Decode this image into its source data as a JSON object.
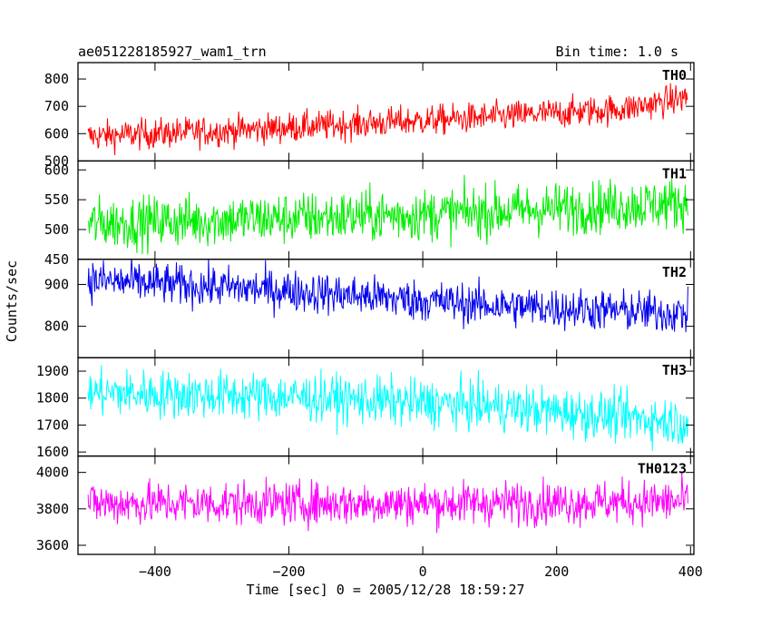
{
  "title_left": "ae051228185927_wam1_trn",
  "title_right": "Bin time: 1.0 s",
  "ylabel": "Counts/sec",
  "xlabel": "Time [sec] 0 = 2005/12/28 18:59:27",
  "colors": {
    "TH0": "#ff0000",
    "TH1": "#00ee00",
    "TH2": "#0000ee",
    "TH3": "#00ffff",
    "TH0123": "#ff00ff"
  },
  "chart_data": {
    "type": "line",
    "x": {
      "start": -500,
      "end": 396,
      "step": 1.0,
      "range": [
        -515,
        405
      ],
      "ticks": [
        -400,
        -200,
        0,
        200,
        400
      ],
      "tick_labels": [
        "−400",
        "−200",
        "0",
        "200",
        "400"
      ]
    },
    "panels": [
      {
        "name": "TH0",
        "ylim": [
          500,
          860
        ],
        "ticks": [
          500,
          600,
          700,
          800
        ],
        "tick_labels": [
          "500",
          "600",
          "700",
          "800"
        ],
        "trend": [
          [
            -500,
            590
          ],
          [
            -300,
            610
          ],
          [
            -100,
            635
          ],
          [
            100,
            660
          ],
          [
            300,
            690
          ],
          [
            400,
            735
          ]
        ],
        "noise": 28
      },
      {
        "name": "TH1",
        "ylim": [
          450,
          615
        ],
        "ticks": [
          450,
          500,
          550,
          600
        ],
        "tick_labels": [
          "450",
          "500",
          "550",
          "600"
        ],
        "trend": [
          [
            -500,
            510
          ],
          [
            0,
            525
          ],
          [
            400,
            545
          ]
        ],
        "noise": 22
      },
      {
        "name": "TH2",
        "ylim": [
          725,
          960
        ],
        "ticks": [
          800,
          900
        ],
        "tick_labels": [
          "800",
          "900"
        ],
        "trend": [
          [
            -500,
            910
          ],
          [
            -200,
            885
          ],
          [
            100,
            850
          ],
          [
            400,
            830
          ]
        ],
        "noise": 25
      },
      {
        "name": "TH3",
        "ylim": [
          1585,
          1950
        ],
        "ticks": [
          1600,
          1700,
          1800,
          1900
        ],
        "tick_labels": [
          "1600",
          "1700",
          "1800",
          "1900"
        ],
        "trend": [
          [
            -500,
            1820
          ],
          [
            -200,
            1805
          ],
          [
            100,
            1770
          ],
          [
            400,
            1710
          ]
        ],
        "noise": 45
      },
      {
        "name": "TH0123",
        "ylim": [
          3550,
          4090
        ],
        "ticks": [
          3600,
          3800,
          4000
        ],
        "tick_labels": [
          "3600",
          "3800",
          "4000"
        ],
        "trend": [
          [
            -500,
            3830
          ],
          [
            0,
            3830
          ],
          [
            400,
            3840
          ]
        ],
        "noise": 60
      }
    ]
  }
}
